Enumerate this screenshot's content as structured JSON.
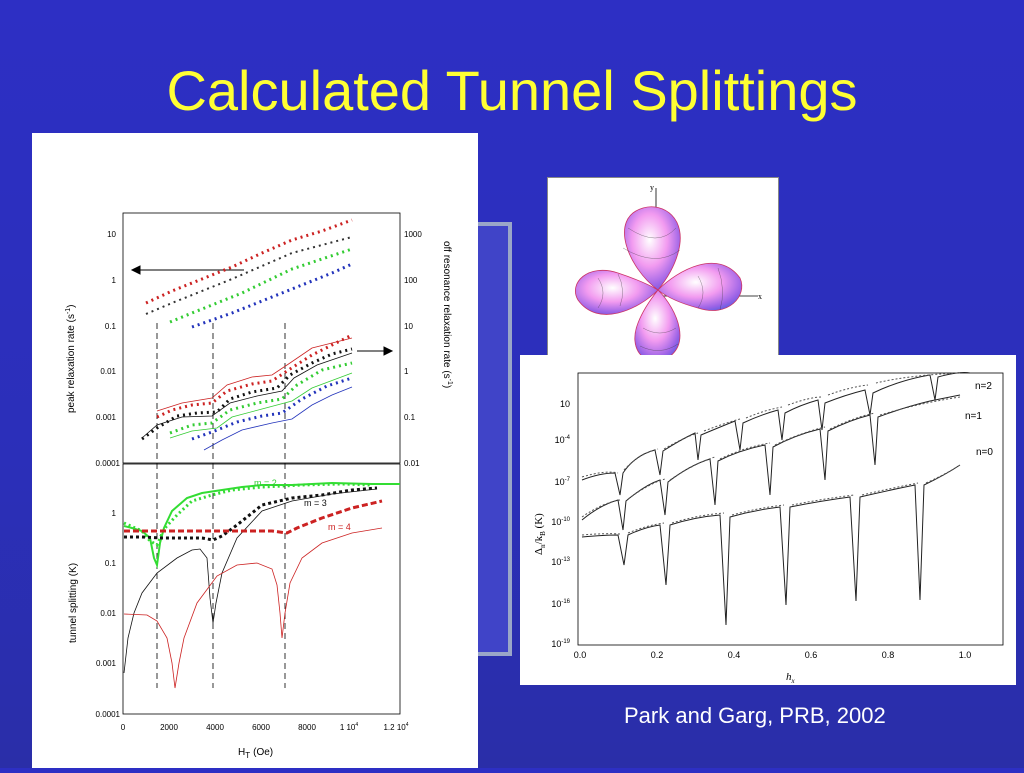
{
  "slide": {
    "title": "Calculated Tunnel Splittings",
    "caption": "Park and Garg, PRB, 2002",
    "colors": {
      "background": "#2d2fc4",
      "title": "#ffff33",
      "caption": "#ffffff"
    }
  },
  "left_figure": {
    "top_plot": {
      "ylabel_left": "peak relaxation rate (s",
      "ylabel_left_sup": "-1",
      "ylabel_left_end": ")",
      "ylabel_right": "off resonance relaxation rate (s",
      "ylabel_right_sup": "-1",
      "ylabel_right_end": ")",
      "left_ticks": [
        "10",
        "1",
        "0.1",
        "0.01",
        "0.001",
        "0.0001"
      ],
      "right_ticks": [
        "1000",
        "100",
        "10",
        "1",
        "0.1",
        "0.01"
      ]
    },
    "bottom_plot": {
      "ylabel": "tunnel splitting (K)",
      "ticks": [
        "1",
        "0.1",
        "0.01",
        "0.001",
        "0.0001"
      ],
      "x_ticks": [
        "0",
        "2000",
        "4000",
        "6000",
        "8000",
        "1 10",
        "1.2 10"
      ],
      "x_tick_sup": "4",
      "xlabel_main": "H",
      "xlabel_sub": "T",
      "xlabel_unit": "(Oe)",
      "series_labels": [
        "m = 2",
        "m = 3",
        "m = 4"
      ]
    }
  },
  "right_figure": {
    "ylabel": "Δ",
    "ylabel_sub": "n",
    "ylabel_rest": "/k",
    "ylabel_sub2": "B",
    "ylabel_unit": " (K)",
    "y_ticks": [
      "10",
      "10",
      "10",
      "10",
      "10",
      "10",
      "10"
    ],
    "y_exps": [
      "",
      "-4",
      "-7",
      "-10",
      "-13",
      "-16",
      "-19"
    ],
    "x_ticks": [
      "0.0",
      "0.2",
      "0.4",
      "0.6",
      "0.8",
      "1.0"
    ],
    "xlabel": "h",
    "xlabel_sub": "x",
    "curve_labels": [
      "n=2",
      "n=1",
      "n=0"
    ]
  },
  "surface_figure": {
    "axis_y": "y",
    "axis_x": "x"
  }
}
